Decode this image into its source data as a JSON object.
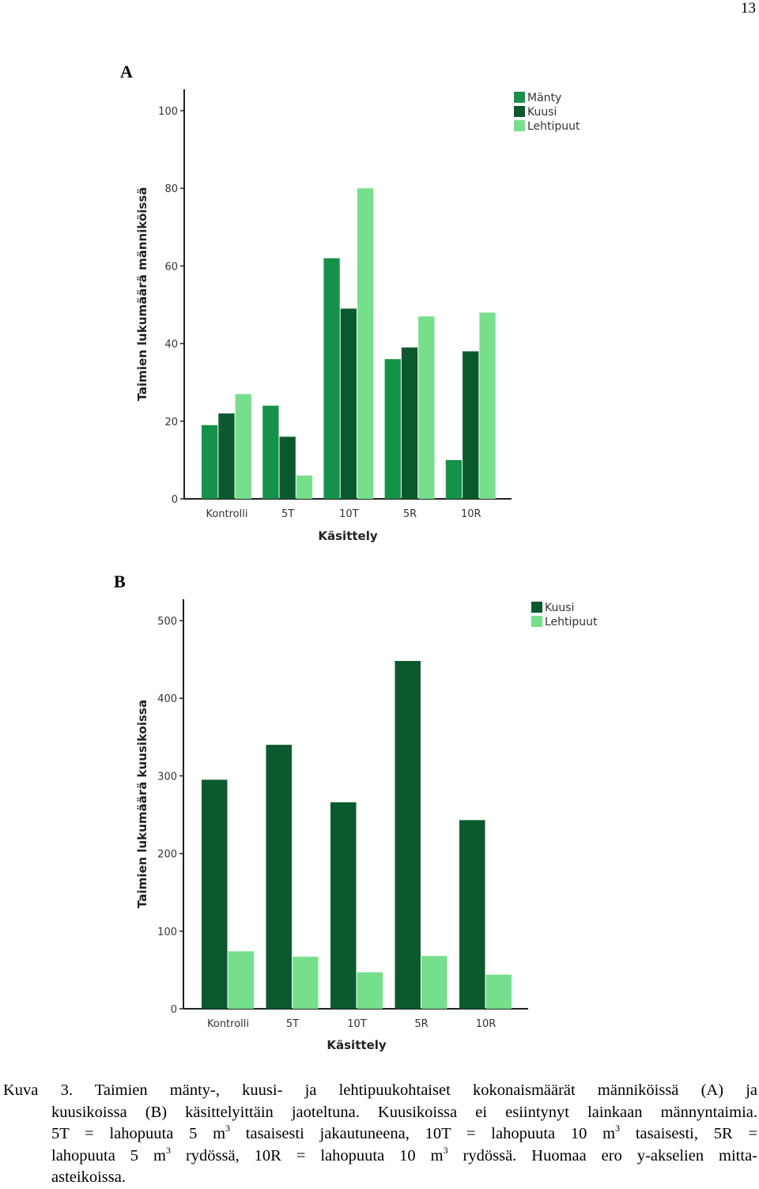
{
  "page_number": "13",
  "panels": {
    "a_label": "A",
    "b_label": "B"
  },
  "colors": {
    "manty": "#15924a",
    "kuusi": "#0b5a2e",
    "lehtipuut": "#76df8c",
    "axis": "#222222"
  },
  "chart_data": [
    {
      "type": "bar",
      "panel": "A",
      "categories": [
        "Kontrolli",
        "5T",
        "10T",
        "5R",
        "10R"
      ],
      "series": [
        {
          "name": "Mänty",
          "values": [
            19,
            24,
            62,
            36,
            10
          ]
        },
        {
          "name": "Kuusi",
          "values": [
            22,
            16,
            49,
            39,
            38
          ]
        },
        {
          "name": "Lehtipuut",
          "values": [
            27,
            6,
            80,
            47,
            48
          ]
        }
      ],
      "xlabel": "Käsittely",
      "ylabel": "Taimien lukumäärä männiköissä",
      "ylim": [
        0,
        100
      ],
      "yticks": [
        "0",
        "20",
        "40",
        "60",
        "80",
        "100"
      ],
      "legend": "top-right",
      "grid": false
    },
    {
      "type": "bar",
      "panel": "B",
      "categories": [
        "Kontrolli",
        "5T",
        "10T",
        "5R",
        "10R"
      ],
      "series": [
        {
          "name": "Kuusi",
          "values": [
            295,
            340,
            266,
            448,
            243
          ]
        },
        {
          "name": "Lehtipuut",
          "values": [
            74,
            67,
            47,
            68,
            44
          ]
        }
      ],
      "xlabel": "Käsittely",
      "ylabel": "Taimien lukumäärä kuusikoissa",
      "ylim": [
        0,
        500
      ],
      "yticks": [
        "0",
        "100",
        "200",
        "300",
        "400",
        "500"
      ],
      "legend": "top-right",
      "grid": false
    }
  ],
  "caption": {
    "line1": "Kuva 3. Taimien mänty-, kuusi- ja lehtipuukohtaiset kokonaismäärät männiköissä (A) ja",
    "line2": "kuusikoissa (B) käsittelyittäin jaoteltuna. Kuusikoissa ei esiintynyt lainkaan männyntaimia.",
    "line3a": "5T = lahopuuta 5 m",
    "line3b": " tasaisesti jakautuneena, 10T = lahopuuta 10 m",
    "line3c": " tasaisesti, 5R =",
    "line4a": "lahopuuta 5 m",
    "line4b": " rydössä, 10R = lahopuuta 10 m",
    "line4c": " rydössä. Huomaa ero y-akselien mitta-",
    "line5": "asteikoissa.",
    "sup": "3"
  }
}
